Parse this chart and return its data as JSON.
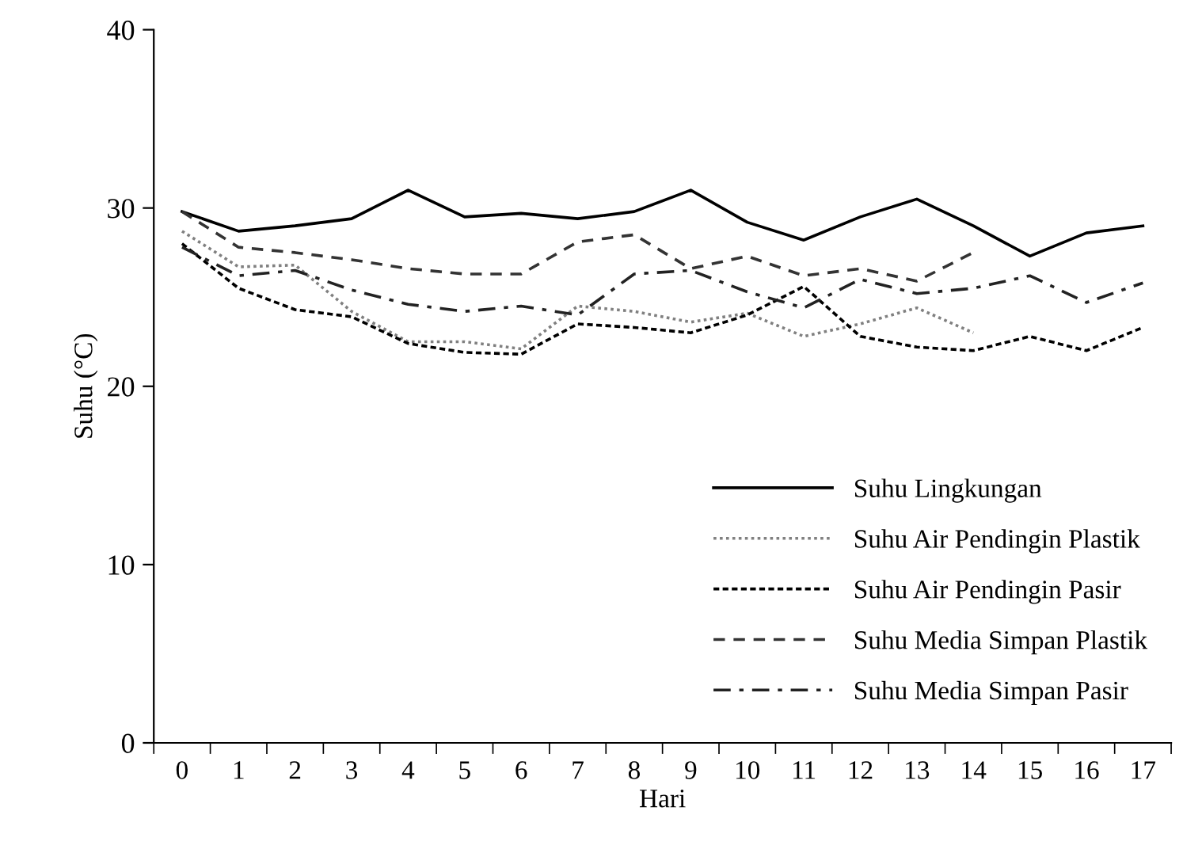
{
  "chart_data": {
    "type": "line",
    "xlabel": "Hari",
    "ylabel": "Suhu (°C)",
    "categories": [
      "0",
      "1",
      "2",
      "3",
      "4",
      "5",
      "6",
      "7",
      "8",
      "9",
      "10",
      "11",
      "12",
      "13",
      "14",
      "15",
      "16",
      "17"
    ],
    "ylim": [
      0,
      40
    ],
    "yticks": [
      0,
      10,
      20,
      30,
      40
    ],
    "grid": false,
    "legend": "bottom right",
    "marker": "none",
    "series": [
      {
        "name": "Suhu Lingkungan",
        "color": "#000000",
        "line_style": "solid",
        "values": [
          29.8,
          28.7,
          29.0,
          29.4,
          31.0,
          29.5,
          29.7,
          29.4,
          29.8,
          31.0,
          29.2,
          28.2,
          29.5,
          30.5,
          29.0,
          27.3,
          28.6,
          29.0
        ]
      },
      {
        "name": "Suhu Air Pendingin Plastik",
        "color": "#808080",
        "line_style": "dotted",
        "values": [
          28.7,
          26.7,
          26.8,
          24.2,
          22.5,
          22.5,
          22.1,
          24.5,
          24.2,
          23.6,
          24.1,
          22.8,
          23.5,
          24.4,
          23.0,
          null,
          null,
          null
        ]
      },
      {
        "name": "Suhu Air Pendingin Pasir",
        "color": "#000000",
        "line_style": "finedash",
        "values": [
          28.0,
          25.5,
          24.3,
          23.9,
          22.4,
          21.9,
          21.8,
          23.5,
          23.3,
          23.0,
          24.0,
          25.6,
          22.8,
          22.2,
          22.0,
          22.8,
          22.0,
          23.3
        ]
      },
      {
        "name": "Suhu Media Simpan Plastik",
        "color": "#333333",
        "line_style": "dashed",
        "values": [
          29.8,
          27.8,
          27.5,
          27.1,
          26.6,
          26.3,
          26.3,
          28.1,
          28.5,
          26.6,
          27.3,
          26.2,
          26.6,
          25.9,
          27.5,
          null,
          null,
          null
        ]
      },
      {
        "name": "Suhu Media Simpan Pasir",
        "color": "#222222",
        "line_style": "dashdot",
        "values": [
          27.8,
          26.2,
          26.5,
          25.4,
          24.6,
          24.2,
          24.5,
          24.0,
          26.3,
          26.5,
          25.3,
          24.4,
          26.0,
          25.2,
          25.5,
          26.2,
          24.7,
          25.8
        ]
      }
    ]
  }
}
